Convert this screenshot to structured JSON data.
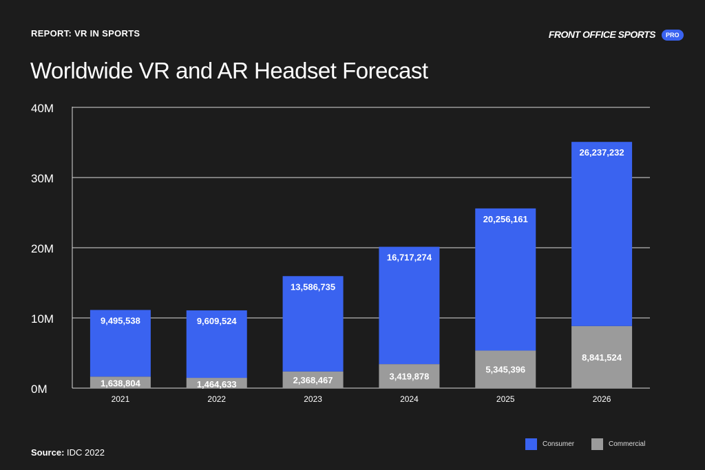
{
  "header": {
    "report": "REPORT: VR IN SPORTS",
    "brand": "FRONT OFFICE SPORTS",
    "badge": "PRO"
  },
  "source": {
    "label": "Source:",
    "value": "IDC 2022"
  },
  "colors": {
    "consumer": "#3a63f0",
    "commercial": "#9b9b9b",
    "background": "#1c1c1c"
  },
  "chart_data": {
    "type": "bar",
    "stacked": true,
    "title": "Worldwide VR and AR Headset Forecast",
    "categories": [
      "2021",
      "2022",
      "2023",
      "2024",
      "2025",
      "2026"
    ],
    "series": [
      {
        "name": "Commercial",
        "values": [
          1638804,
          1464633,
          2368467,
          3419878,
          5345396,
          8841524
        ],
        "labels": [
          "1,638,804",
          "1,464,633",
          "2,368,467",
          "3,419,878",
          "5,345,396",
          "8,841,524"
        ]
      },
      {
        "name": "Consumer",
        "values": [
          9495538,
          9609524,
          13586735,
          16717274,
          20256161,
          26237232
        ],
        "labels": [
          "9,495,538",
          "9,609,524",
          "13,586,735",
          "16,717,274",
          "20,256,161",
          "26,237,232"
        ]
      }
    ],
    "ylim": [
      0,
      40000000
    ],
    "yticks": [
      0,
      10000000,
      20000000,
      30000000,
      40000000
    ],
    "ytick_labels": [
      "0M",
      "10M",
      "20M",
      "30M",
      "40M"
    ],
    "grid": true,
    "legend": "bottom-right"
  }
}
